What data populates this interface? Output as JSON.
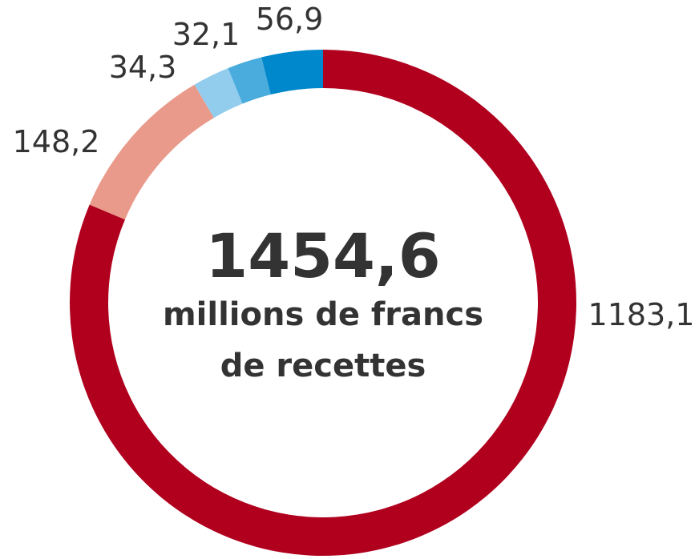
{
  "chart_data": {
    "type": "pie",
    "variant": "donut",
    "slices": [
      {
        "label": "1183,1",
        "value": 1183.1,
        "color": "#B0001E"
      },
      {
        "label": "148,2",
        "value": 148.2,
        "color": "#E99A8A"
      },
      {
        "label": "34,3",
        "value": 34.3,
        "color": "#92CDEE"
      },
      {
        "label": "32,1",
        "value": 32.1,
        "color": "#4AABDD"
      },
      {
        "label": "56,9",
        "value": 56.9,
        "color": "#0088CC"
      }
    ],
    "center": {
      "total": "1454,6",
      "line1": "millions de francs",
      "line2": "de recettes"
    }
  }
}
